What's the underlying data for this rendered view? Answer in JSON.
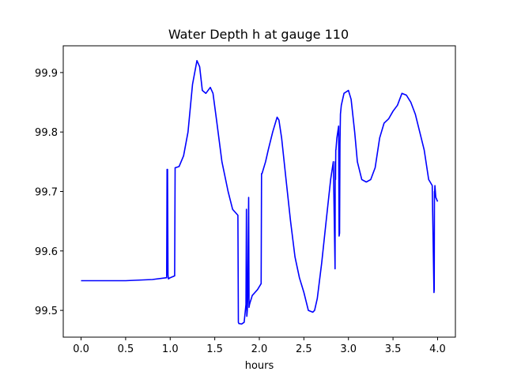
{
  "chart_data": {
    "type": "line",
    "title": "Water Depth h at gauge 110",
    "xlabel": "hours",
    "ylabel": "",
    "xlim": [
      -0.2,
      4.2
    ],
    "ylim": [
      99.455,
      99.945
    ],
    "xticks": [
      0.0,
      0.5,
      1.0,
      1.5,
      2.0,
      2.5,
      3.0,
      3.5,
      4.0
    ],
    "xtick_labels": [
      "0.0",
      "0.5",
      "1.0",
      "1.5",
      "2.0",
      "2.5",
      "3.0",
      "3.5",
      "4.0"
    ],
    "yticks": [
      99.5,
      99.6,
      99.7,
      99.8,
      99.9
    ],
    "ytick_labels": [
      "99.5",
      "99.6",
      "99.7",
      "99.8",
      "99.9"
    ],
    "grid": false,
    "series": [
      {
        "color": "#0000ff",
        "x": [
          0.0,
          0.5,
          0.8,
          0.96,
          0.965,
          0.97,
          0.975,
          0.98,
          1.0,
          1.05,
          1.055,
          1.06,
          1.1,
          1.15,
          1.2,
          1.25,
          1.3,
          1.33,
          1.36,
          1.4,
          1.45,
          1.48,
          1.52,
          1.58,
          1.65,
          1.7,
          1.76,
          1.765,
          1.77,
          1.8,
          1.83,
          1.85,
          1.855,
          1.86,
          1.865,
          1.87,
          1.88,
          1.885,
          1.89,
          1.9,
          1.91,
          1.92,
          1.95,
          1.98,
          2.02,
          2.025,
          2.03,
          2.07,
          2.1,
          2.15,
          2.2,
          2.22,
          2.25,
          2.3,
          2.35,
          2.4,
          2.45,
          2.5,
          2.55,
          2.6,
          2.62,
          2.65,
          2.7,
          2.75,
          2.8,
          2.83,
          2.85,
          2.852,
          2.855,
          2.858,
          2.86,
          2.87,
          2.88,
          2.89,
          2.895,
          2.9,
          2.905,
          2.91,
          2.92,
          2.95,
          3.0,
          3.03,
          3.07,
          3.1,
          3.15,
          3.2,
          3.25,
          3.3,
          3.35,
          3.4,
          3.45,
          3.5,
          3.55,
          3.6,
          3.65,
          3.7,
          3.75,
          3.8,
          3.85,
          3.9,
          3.94,
          3.96,
          3.962,
          3.965,
          3.968,
          3.97,
          3.98,
          4.0
        ],
        "y": [
          99.55,
          99.55,
          99.552,
          99.555,
          99.737,
          99.737,
          99.56,
          99.553,
          99.555,
          99.558,
          99.74,
          99.74,
          99.742,
          99.76,
          99.8,
          99.88,
          99.92,
          99.91,
          99.87,
          99.865,
          99.875,
          99.865,
          99.82,
          99.75,
          99.7,
          99.67,
          99.66,
          99.48,
          99.478,
          99.477,
          99.48,
          99.51,
          99.67,
          99.49,
          99.5,
          99.52,
          99.69,
          99.505,
          99.51,
          99.515,
          99.52,
          99.525,
          99.53,
          99.535,
          99.545,
          99.73,
          99.73,
          99.75,
          99.77,
          99.8,
          99.825,
          99.82,
          99.79,
          99.72,
          99.65,
          99.59,
          99.555,
          99.53,
          99.5,
          99.497,
          99.5,
          99.52,
          99.58,
          99.65,
          99.72,
          99.75,
          99.57,
          99.75,
          99.72,
          99.77,
          99.77,
          99.79,
          99.8,
          99.81,
          99.625,
          99.63,
          99.78,
          99.83,
          99.845,
          99.865,
          99.87,
          99.855,
          99.8,
          99.75,
          99.72,
          99.716,
          99.72,
          99.74,
          99.79,
          99.815,
          99.822,
          99.835,
          99.845,
          99.865,
          99.862,
          99.85,
          99.83,
          99.8,
          99.77,
          99.72,
          99.71,
          99.53,
          99.535,
          99.7,
          99.7,
          99.71,
          99.69,
          99.683
        ]
      }
    ]
  }
}
